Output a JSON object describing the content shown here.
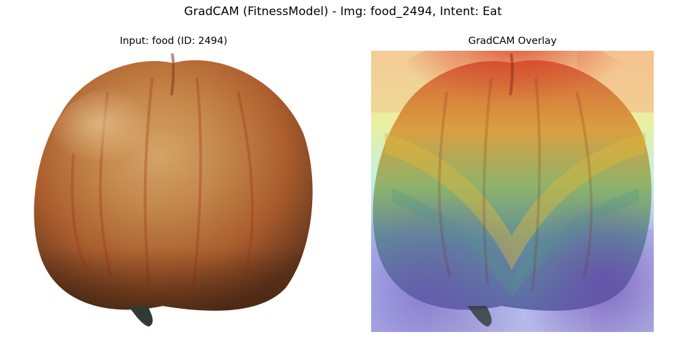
{
  "figure": {
    "title": "GradCAM (FitnessModel) - Img: food_2494, Intent: Eat"
  },
  "panels": {
    "left": {
      "title": "Input: food (ID: 2494)",
      "image": "apple-photo"
    },
    "right": {
      "title": "GradCAM Overlay",
      "image": "apple-photo-with-gradcam-heatmap"
    }
  },
  "colors": {
    "background": "#ffffff",
    "apple_red": "#b5432a",
    "apple_orange": "#c9884a",
    "apple_yellow": "#d9b56a",
    "stem": "#2f3a32",
    "heat_hot": "#d9442e",
    "heat_warm": "#e6c43a",
    "heat_mid": "#5fbf9a",
    "heat_cool": "#6a72c9",
    "heat_cold": "#8a66c4"
  }
}
